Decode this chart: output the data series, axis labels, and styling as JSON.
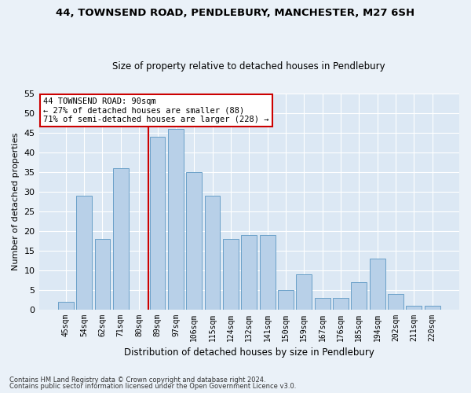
{
  "title1": "44, TOWNSEND ROAD, PENDLEBURY, MANCHESTER, M27 6SH",
  "title2": "Size of property relative to detached houses in Pendlebury",
  "xlabel": "Distribution of detached houses by size in Pendlebury",
  "ylabel": "Number of detached properties",
  "categories": [
    "45sqm",
    "54sqm",
    "62sqm",
    "71sqm",
    "80sqm",
    "89sqm",
    "97sqm",
    "106sqm",
    "115sqm",
    "124sqm",
    "132sqm",
    "141sqm",
    "150sqm",
    "159sqm",
    "167sqm",
    "176sqm",
    "185sqm",
    "194sqm",
    "202sqm",
    "211sqm",
    "220sqm"
  ],
  "values": [
    2,
    29,
    18,
    36,
    0,
    44,
    46,
    35,
    29,
    18,
    19,
    19,
    5,
    9,
    3,
    3,
    7,
    13,
    4,
    1,
    1
  ],
  "bar_color": "#b8d0e8",
  "bar_edge_color": "#6aa0c8",
  "highlight_index": 5,
  "annotation_title": "44 TOWNSEND ROAD: 90sqm",
  "annotation_line1": "← 27% of detached houses are smaller (88)",
  "annotation_line2": "71% of semi-detached houses are larger (228) →",
  "red_line_color": "#cc0000",
  "annotation_box_color": "#ffffff",
  "annotation_box_edge": "#cc0000",
  "ylim": [
    0,
    55
  ],
  "yticks": [
    0,
    5,
    10,
    15,
    20,
    25,
    30,
    35,
    40,
    45,
    50,
    55
  ],
  "footnote1": "Contains HM Land Registry data © Crown copyright and database right 2024.",
  "footnote2": "Contains public sector information licensed under the Open Government Licence v3.0.",
  "bg_color": "#eaf1f8",
  "plot_bg_color": "#dce8f4"
}
